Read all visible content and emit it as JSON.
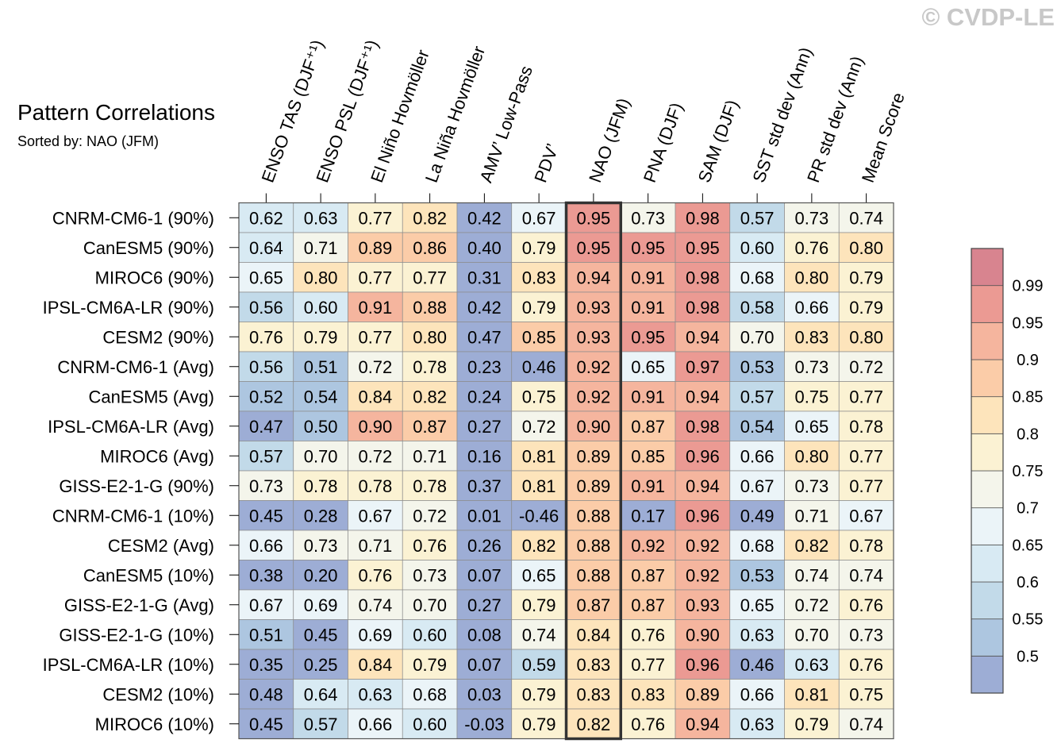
{
  "watermark": "© CVDP-LE",
  "chart_data": {
    "type": "heatmap",
    "title": "Pattern Correlations",
    "subtitle": "Sorted by: NAO (JFM)",
    "columns": [
      "ENSO TAS (DJF⁺¹)",
      "ENSO PSL (DJF⁺¹)",
      "El Niño Hovmöller",
      "La Niña Hovmöller",
      "AMV’ Low-Pass",
      "PDV’",
      "NAO (JFM)",
      "PNA (DJF)",
      "SAM (DJF)",
      "SST std dev (Ann)",
      "PR std dev (Ann)",
      "Mean Score"
    ],
    "highlight_column": "NAO (JFM)",
    "rows": [
      "CNRM-CM6-1 (90%)",
      "CanESM5 (90%)",
      "MIROC6 (90%)",
      "IPSL-CM6A-LR (90%)",
      "CESM2 (90%)",
      "CNRM-CM6-1 (Avg)",
      "CanESM5 (Avg)",
      "IPSL-CM6A-LR (Avg)",
      "MIROC6 (Avg)",
      "GISS-E2-1-G (90%)",
      "CNRM-CM6-1 (10%)",
      "CESM2 (Avg)",
      "CanESM5 (10%)",
      "GISS-E2-1-G (Avg)",
      "GISS-E2-1-G (10%)",
      "IPSL-CM6A-LR (10%)",
      "CESM2 (10%)",
      "MIROC6 (10%)"
    ],
    "values": [
      [
        "0.62",
        "0.63",
        "0.77",
        "0.82",
        "0.42",
        "0.67",
        "0.95",
        "0.73",
        "0.98",
        "0.57",
        "0.73",
        "0.74"
      ],
      [
        "0.64",
        "0.71",
        "0.89",
        "0.86",
        "0.40",
        "0.79",
        "0.95",
        "0.95",
        "0.95",
        "0.60",
        "0.76",
        "0.80"
      ],
      [
        "0.65",
        "0.80",
        "0.77",
        "0.77",
        "0.31",
        "0.83",
        "0.94",
        "0.91",
        "0.98",
        "0.68",
        "0.80",
        "0.79"
      ],
      [
        "0.56",
        "0.60",
        "0.91",
        "0.88",
        "0.42",
        "0.79",
        "0.93",
        "0.91",
        "0.98",
        "0.58",
        "0.66",
        "0.79"
      ],
      [
        "0.76",
        "0.79",
        "0.77",
        "0.80",
        "0.47",
        "0.85",
        "0.93",
        "0.95",
        "0.94",
        "0.70",
        "0.83",
        "0.80"
      ],
      [
        "0.56",
        "0.51",
        "0.72",
        "0.78",
        "0.23",
        "0.46",
        "0.92",
        "0.65",
        "0.97",
        "0.53",
        "0.73",
        "0.72"
      ],
      [
        "0.52",
        "0.54",
        "0.84",
        "0.82",
        "0.24",
        "0.75",
        "0.92",
        "0.91",
        "0.94",
        "0.57",
        "0.75",
        "0.77"
      ],
      [
        "0.47",
        "0.50",
        "0.90",
        "0.87",
        "0.27",
        "0.72",
        "0.90",
        "0.87",
        "0.98",
        "0.54",
        "0.65",
        "0.78"
      ],
      [
        "0.57",
        "0.70",
        "0.72",
        "0.71",
        "0.16",
        "0.81",
        "0.89",
        "0.85",
        "0.96",
        "0.66",
        "0.80",
        "0.77"
      ],
      [
        "0.73",
        "0.78",
        "0.78",
        "0.78",
        "0.37",
        "0.81",
        "0.89",
        "0.91",
        "0.94",
        "0.67",
        "0.73",
        "0.77"
      ],
      [
        "0.45",
        "0.28",
        "0.67",
        "0.72",
        "0.01",
        "-0.46",
        "0.88",
        "0.17",
        "0.96",
        "0.49",
        "0.71",
        "0.67"
      ],
      [
        "0.66",
        "0.73",
        "0.71",
        "0.76",
        "0.26",
        "0.82",
        "0.88",
        "0.92",
        "0.92",
        "0.68",
        "0.82",
        "0.78"
      ],
      [
        "0.38",
        "0.20",
        "0.76",
        "0.73",
        "0.07",
        "0.65",
        "0.88",
        "0.87",
        "0.92",
        "0.53",
        "0.74",
        "0.74"
      ],
      [
        "0.67",
        "0.69",
        "0.74",
        "0.70",
        "0.27",
        "0.79",
        "0.87",
        "0.87",
        "0.93",
        "0.65",
        "0.72",
        "0.76"
      ],
      [
        "0.51",
        "0.45",
        "0.69",
        "0.60",
        "0.08",
        "0.74",
        "0.84",
        "0.76",
        "0.90",
        "0.63",
        "0.70",
        "0.73"
      ],
      [
        "0.35",
        "0.25",
        "0.84",
        "0.79",
        "0.07",
        "0.59",
        "0.83",
        "0.77",
        "0.96",
        "0.46",
        "0.63",
        "0.76"
      ],
      [
        "0.48",
        "0.64",
        "0.63",
        "0.68",
        "0.03",
        "0.79",
        "0.83",
        "0.83",
        "0.89",
        "0.66",
        "0.81",
        "0.75"
      ],
      [
        "0.45",
        "0.57",
        "0.66",
        "0.60",
        "-0.03",
        "0.79",
        "0.82",
        "0.76",
        "0.94",
        "0.63",
        "0.79",
        "0.74"
      ]
    ],
    "colorbar": {
      "levels": [
        "0.5",
        "0.55",
        "0.6",
        "0.65",
        "0.7",
        "0.75",
        "0.8",
        "0.85",
        "0.9",
        "0.95",
        "0.99"
      ],
      "colors": [
        "#9dadd5",
        "#adc6e0",
        "#c2dae9",
        "#d8eaf3",
        "#ebf4f8",
        "#f4f5eb",
        "#fbf2d3",
        "#fde4bb",
        "#fbcca8",
        "#f5b59e",
        "#eb9a93",
        "#d8848f"
      ]
    }
  }
}
